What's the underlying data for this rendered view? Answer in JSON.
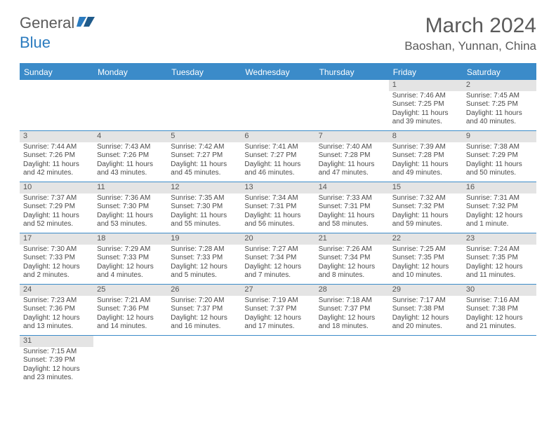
{
  "logo": {
    "text1": "General",
    "text2": "Blue"
  },
  "title": "March 2024",
  "location": "Baoshan, Yunnan, China",
  "colors": {
    "brand": "#3b8bc9",
    "headerBg": "#3b8bc9",
    "dayBg": "#e4e4e4",
    "text": "#4a4a4a"
  },
  "dayNames": [
    "Sunday",
    "Monday",
    "Tuesday",
    "Wednesday",
    "Thursday",
    "Friday",
    "Saturday"
  ],
  "weeks": [
    [
      null,
      null,
      null,
      null,
      null,
      {
        "n": "1",
        "sr": "7:46 AM",
        "ss": "7:25 PM",
        "dl": "11 hours and 39 minutes."
      },
      {
        "n": "2",
        "sr": "7:45 AM",
        "ss": "7:25 PM",
        "dl": "11 hours and 40 minutes."
      }
    ],
    [
      {
        "n": "3",
        "sr": "7:44 AM",
        "ss": "7:26 PM",
        "dl": "11 hours and 42 minutes."
      },
      {
        "n": "4",
        "sr": "7:43 AM",
        "ss": "7:26 PM",
        "dl": "11 hours and 43 minutes."
      },
      {
        "n": "5",
        "sr": "7:42 AM",
        "ss": "7:27 PM",
        "dl": "11 hours and 45 minutes."
      },
      {
        "n": "6",
        "sr": "7:41 AM",
        "ss": "7:27 PM",
        "dl": "11 hours and 46 minutes."
      },
      {
        "n": "7",
        "sr": "7:40 AM",
        "ss": "7:28 PM",
        "dl": "11 hours and 47 minutes."
      },
      {
        "n": "8",
        "sr": "7:39 AM",
        "ss": "7:28 PM",
        "dl": "11 hours and 49 minutes."
      },
      {
        "n": "9",
        "sr": "7:38 AM",
        "ss": "7:29 PM",
        "dl": "11 hours and 50 minutes."
      }
    ],
    [
      {
        "n": "10",
        "sr": "7:37 AM",
        "ss": "7:29 PM",
        "dl": "11 hours and 52 minutes."
      },
      {
        "n": "11",
        "sr": "7:36 AM",
        "ss": "7:30 PM",
        "dl": "11 hours and 53 minutes."
      },
      {
        "n": "12",
        "sr": "7:35 AM",
        "ss": "7:30 PM",
        "dl": "11 hours and 55 minutes."
      },
      {
        "n": "13",
        "sr": "7:34 AM",
        "ss": "7:31 PM",
        "dl": "11 hours and 56 minutes."
      },
      {
        "n": "14",
        "sr": "7:33 AM",
        "ss": "7:31 PM",
        "dl": "11 hours and 58 minutes."
      },
      {
        "n": "15",
        "sr": "7:32 AM",
        "ss": "7:32 PM",
        "dl": "11 hours and 59 minutes."
      },
      {
        "n": "16",
        "sr": "7:31 AM",
        "ss": "7:32 PM",
        "dl": "12 hours and 1 minute."
      }
    ],
    [
      {
        "n": "17",
        "sr": "7:30 AM",
        "ss": "7:33 PM",
        "dl": "12 hours and 2 minutes."
      },
      {
        "n": "18",
        "sr": "7:29 AM",
        "ss": "7:33 PM",
        "dl": "12 hours and 4 minutes."
      },
      {
        "n": "19",
        "sr": "7:28 AM",
        "ss": "7:33 PM",
        "dl": "12 hours and 5 minutes."
      },
      {
        "n": "20",
        "sr": "7:27 AM",
        "ss": "7:34 PM",
        "dl": "12 hours and 7 minutes."
      },
      {
        "n": "21",
        "sr": "7:26 AM",
        "ss": "7:34 PM",
        "dl": "12 hours and 8 minutes."
      },
      {
        "n": "22",
        "sr": "7:25 AM",
        "ss": "7:35 PM",
        "dl": "12 hours and 10 minutes."
      },
      {
        "n": "23",
        "sr": "7:24 AM",
        "ss": "7:35 PM",
        "dl": "12 hours and 11 minutes."
      }
    ],
    [
      {
        "n": "24",
        "sr": "7:23 AM",
        "ss": "7:36 PM",
        "dl": "12 hours and 13 minutes."
      },
      {
        "n": "25",
        "sr": "7:21 AM",
        "ss": "7:36 PM",
        "dl": "12 hours and 14 minutes."
      },
      {
        "n": "26",
        "sr": "7:20 AM",
        "ss": "7:37 PM",
        "dl": "12 hours and 16 minutes."
      },
      {
        "n": "27",
        "sr": "7:19 AM",
        "ss": "7:37 PM",
        "dl": "12 hours and 17 minutes."
      },
      {
        "n": "28",
        "sr": "7:18 AM",
        "ss": "7:37 PM",
        "dl": "12 hours and 18 minutes."
      },
      {
        "n": "29",
        "sr": "7:17 AM",
        "ss": "7:38 PM",
        "dl": "12 hours and 20 minutes."
      },
      {
        "n": "30",
        "sr": "7:16 AM",
        "ss": "7:38 PM",
        "dl": "12 hours and 21 minutes."
      }
    ],
    [
      {
        "n": "31",
        "sr": "7:15 AM",
        "ss": "7:39 PM",
        "dl": "12 hours and 23 minutes."
      },
      null,
      null,
      null,
      null,
      null,
      null
    ]
  ],
  "labels": {
    "sunrise": "Sunrise:",
    "sunset": "Sunset:",
    "daylight": "Daylight:"
  }
}
